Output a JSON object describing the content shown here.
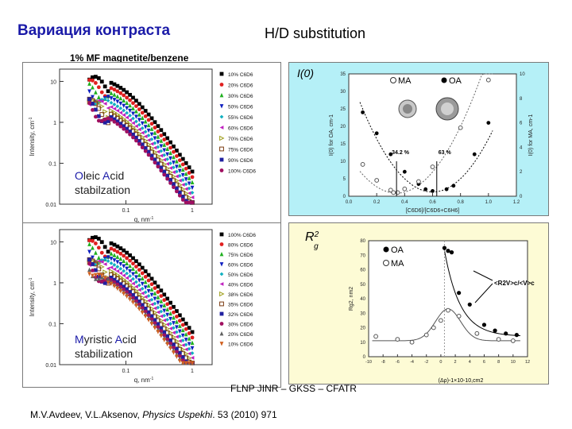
{
  "slide": {
    "title_ru": "Вариация контраста",
    "title_hd": "H/D substitution",
    "subtitle": "1% MF magnetite/benzene",
    "caption_oleic": [
      "O",
      "leic ",
      "A",
      "cid",
      "stabilzation"
    ],
    "caption_myristic": [
      "M",
      "yristic ",
      "A",
      "cid",
      "stabilization"
    ],
    "footer_org": "FLNP JINR – GKSS – CFATR",
    "footer_ref_authors": "M.V.Avdeev, V.L.Aksenov, ",
    "footer_ref_journal": "Physics Uspekhi",
    "footer_ref_rest": ". 53 (2010) 971"
  },
  "chart_data": [
    {
      "type": "scatter",
      "title": "",
      "xlabel": "q, nm",
      "xlabel_sup": "-1",
      "ylabel": "Intensity, cm",
      "ylabel_sup": "-1",
      "xscale": "log",
      "yscale": "log",
      "yticks": [
        "10",
        "1",
        "0.1",
        "0.01"
      ],
      "xticks": [
        "0.1",
        "1"
      ],
      "legend": [
        "10% C6D6",
        "20% C6D6",
        "30% C6D6",
        "50% C6D6",
        "55% C6D6",
        "60% C6D6",
        "70% C6D6",
        "75% C6D6",
        "90% C6D6",
        "100% C6D6"
      ],
      "colors": [
        "#000000",
        "#e02020",
        "#20b020",
        "#1020c0",
        "#10b0c0",
        "#c020c0",
        "#a0a020",
        "#7a3a10",
        "#2020a0",
        "#a01060"
      ]
    },
    {
      "type": "scatter",
      "title": "",
      "xlabel": "q, nm",
      "xlabel_sup": "-1",
      "ylabel": "Intensity, cm",
      "ylabel_sup": "-1",
      "xscale": "log",
      "yscale": "log",
      "yticks": [
        "10",
        "1",
        "0.1",
        "0.01"
      ],
      "xticks": [
        "0.1",
        "1"
      ],
      "legend": [
        "100% C6D6",
        "80% C6D6",
        "75% C6D6",
        "60% C6D6",
        "50% C6D6",
        "40% C6D6",
        "38% C6D6",
        "35% C6D6",
        "32% C6D6",
        "30% C6D6",
        "20% C6D6",
        "10% C6D6"
      ],
      "colors": [
        "#000000",
        "#e02020",
        "#20b020",
        "#1020c0",
        "#10b0c0",
        "#c020c0",
        "#a0a020",
        "#7a3a10",
        "#2020a0",
        "#a01060",
        "#606060",
        "#d06020"
      ]
    },
    {
      "type": "scatter",
      "title": "I(0)",
      "xlabel": "[C6D6]/[C6D6+C6H6]",
      "ylabel_left": "I(0) for OA, cm-1",
      "ylabel_right": "I(0) for MA, cm-1",
      "xlim": [
        0.0,
        1.2
      ],
      "xticks": [
        "0.0",
        "0.2",
        "0.4",
        "0.6",
        "0.8",
        "1.0",
        "1.2"
      ],
      "yticks_left": [
        "0",
        "5",
        "10",
        "15",
        "20",
        "25",
        "30",
        "35"
      ],
      "yticks_right": [
        "0",
        "2",
        "4",
        "6",
        "8",
        "10"
      ],
      "legend": [
        "MA",
        "OA"
      ],
      "annotations": [
        "34.2 %",
        "63 %"
      ],
      "series": [
        {
          "name": "OA",
          "x": [
            0.1,
            0.2,
            0.3,
            0.4,
            0.5,
            0.55,
            0.6,
            0.7,
            0.75,
            0.9,
            1.0
          ],
          "y": [
            24,
            18,
            12,
            7,
            3.5,
            2,
            1.5,
            2,
            3,
            12,
            21
          ]
        },
        {
          "name": "MA",
          "x": [
            0.1,
            0.2,
            0.3,
            0.32,
            0.35,
            0.4,
            0.5,
            0.6,
            0.8,
            1.0
          ],
          "y": [
            2.6,
            1.3,
            0.5,
            0.3,
            0.3,
            0.6,
            1.2,
            2.4,
            5.6,
            9.5
          ]
        }
      ]
    },
    {
      "type": "scatter",
      "title": "Rg2",
      "xlabel": "(Δρ)-1×10-10,cm2",
      "ylabel": "Rg2, nm2",
      "xlim": [
        -10,
        12
      ],
      "ylim": [
        0,
        80
      ],
      "xticks": [
        "-10",
        "-8",
        "-6",
        "-4",
        "-2",
        "0",
        "2",
        "4",
        "6",
        "8",
        "10",
        "12"
      ],
      "yticks": [
        "0",
        "10",
        "20",
        "30",
        "40",
        "50",
        "60",
        "70",
        "80"
      ],
      "legend": [
        "OA",
        "MA"
      ],
      "annotations": [
        "<R2V>c/<V>c"
      ],
      "series": [
        {
          "name": "OA",
          "x": [
            0.5,
            1,
            1.5,
            2.5,
            4,
            6,
            7.5,
            9,
            10.5
          ],
          "y": [
            75,
            73,
            72,
            44,
            36,
            22,
            18,
            16,
            15
          ]
        },
        {
          "name": "MA",
          "x": [
            -9,
            -6,
            -4,
            -2,
            -1,
            0,
            1,
            2.5,
            5,
            8,
            10
          ],
          "y": [
            14,
            12,
            10,
            15,
            20,
            25,
            32,
            28,
            16,
            12,
            11
          ]
        }
      ]
    }
  ]
}
